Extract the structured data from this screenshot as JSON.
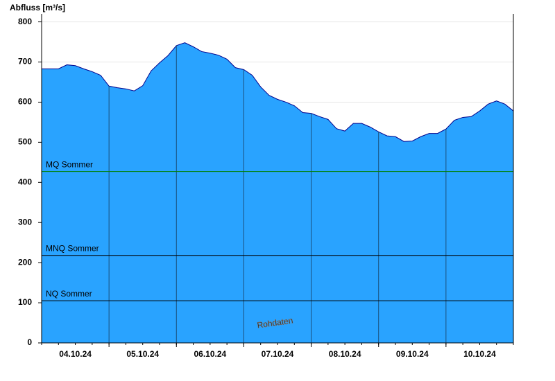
{
  "chart_data": {
    "type": "area",
    "y_label": "Abfluss [m³/s]",
    "watermark": "Rohdaten",
    "color": "#29a3ff",
    "line_color": "#00008b",
    "xlim": [
      0,
      168
    ],
    "xticks": [
      {
        "value": 12,
        "label": "04.10.24"
      },
      {
        "value": 36,
        "label": "05.10.24"
      },
      {
        "value": 60,
        "label": "06.10.24"
      },
      {
        "value": 84,
        "label": "07.10.24"
      },
      {
        "value": 108,
        "label": "08.10.24"
      },
      {
        "value": 132,
        "label": "09.10.24"
      },
      {
        "value": 156,
        "label": "10.10.24"
      }
    ],
    "day_lines": [
      24,
      48,
      72,
      96,
      120,
      144
    ],
    "ylim": [
      0,
      820
    ],
    "yticks": [
      0,
      100,
      200,
      300,
      400,
      500,
      600,
      700,
      800
    ],
    "grid": true,
    "x": [
      0,
      3,
      6,
      9,
      12,
      15,
      18,
      21,
      24,
      27,
      30,
      33,
      36,
      39,
      42,
      45,
      48,
      51,
      54,
      57,
      60,
      63,
      66,
      69,
      72,
      75,
      78,
      81,
      84,
      87,
      90,
      93,
      96,
      99,
      102,
      105,
      108,
      111,
      114,
      117,
      120,
      123,
      126,
      129,
      132,
      135,
      138,
      141,
      144,
      147,
      150,
      153,
      156,
      159,
      162,
      165,
      168
    ],
    "values": [
      683,
      683,
      683,
      693,
      691,
      683,
      676,
      667,
      640,
      636,
      633,
      628,
      641,
      678,
      698,
      716,
      741,
      748,
      738,
      726,
      722,
      717,
      707,
      686,
      681,
      667,
      638,
      617,
      607,
      600,
      591,
      574,
      572,
      564,
      557,
      534,
      528,
      547,
      547,
      538,
      526,
      516,
      514,
      502,
      503,
      514,
      522,
      522,
      533,
      555,
      562,
      564,
      578,
      595,
      603,
      595,
      578
    ],
    "reference_lines": [
      {
        "name": "MQ Sommer",
        "value": 427,
        "color": "#008000"
      },
      {
        "name": "MNQ Sommer",
        "value": 218,
        "color": "#000000"
      },
      {
        "name": "NQ Sommer",
        "value": 105,
        "color": "#000000"
      }
    ]
  }
}
